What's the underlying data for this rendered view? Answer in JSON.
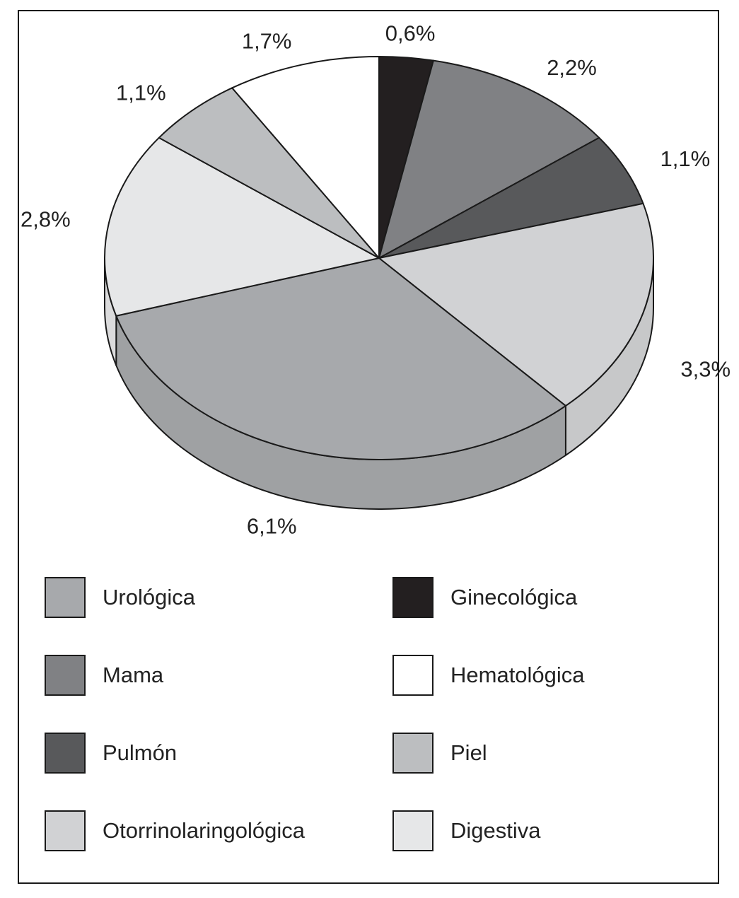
{
  "chart_data": {
    "type": "pie",
    "title": "",
    "slices": [
      {
        "name": "Ginecológica",
        "value": 0.6,
        "label": "0,6%",
        "color": "#231f20"
      },
      {
        "name": "Mama",
        "value": 2.2,
        "label": "2,2%",
        "color": "#808184"
      },
      {
        "name": "Pulmón",
        "value": 1.1,
        "label": "1,1%",
        "color": "#58595b"
      },
      {
        "name": "Otorrinolaringológica",
        "value": 3.3,
        "label": "3,3%",
        "color": "#d1d2d4"
      },
      {
        "name": "Urológica",
        "value": 6.1,
        "label": "6,1%",
        "color": "#a7a9ac"
      },
      {
        "name": "Digestiva",
        "value": 2.8,
        "label": "2,8%",
        "color": "#e6e7e8"
      },
      {
        "name": "Piel",
        "value": 1.1,
        "label": "1,1%",
        "color": "#bcbec0"
      },
      {
        "name": "Hematológica",
        "value": 1.7,
        "label": "1,7%",
        "color": "#ffffff"
      }
    ],
    "legend": {
      "placement": "bottom",
      "items": [
        {
          "label": "Urológica",
          "color": "#a7a9ac"
        },
        {
          "label": "Ginecológica",
          "color": "#231f20"
        },
        {
          "label": "Mama",
          "color": "#808184"
        },
        {
          "label": "Hematológica",
          "color": "#ffffff"
        },
        {
          "label": "Pulmón",
          "color": "#58595b"
        },
        {
          "label": "Piel",
          "color": "#bcbec0"
        },
        {
          "label": "Otorrinolaringológica",
          "color": "#d1d2d4"
        },
        {
          "label": "Digestiva",
          "color": "#e6e7e8"
        }
      ]
    }
  }
}
